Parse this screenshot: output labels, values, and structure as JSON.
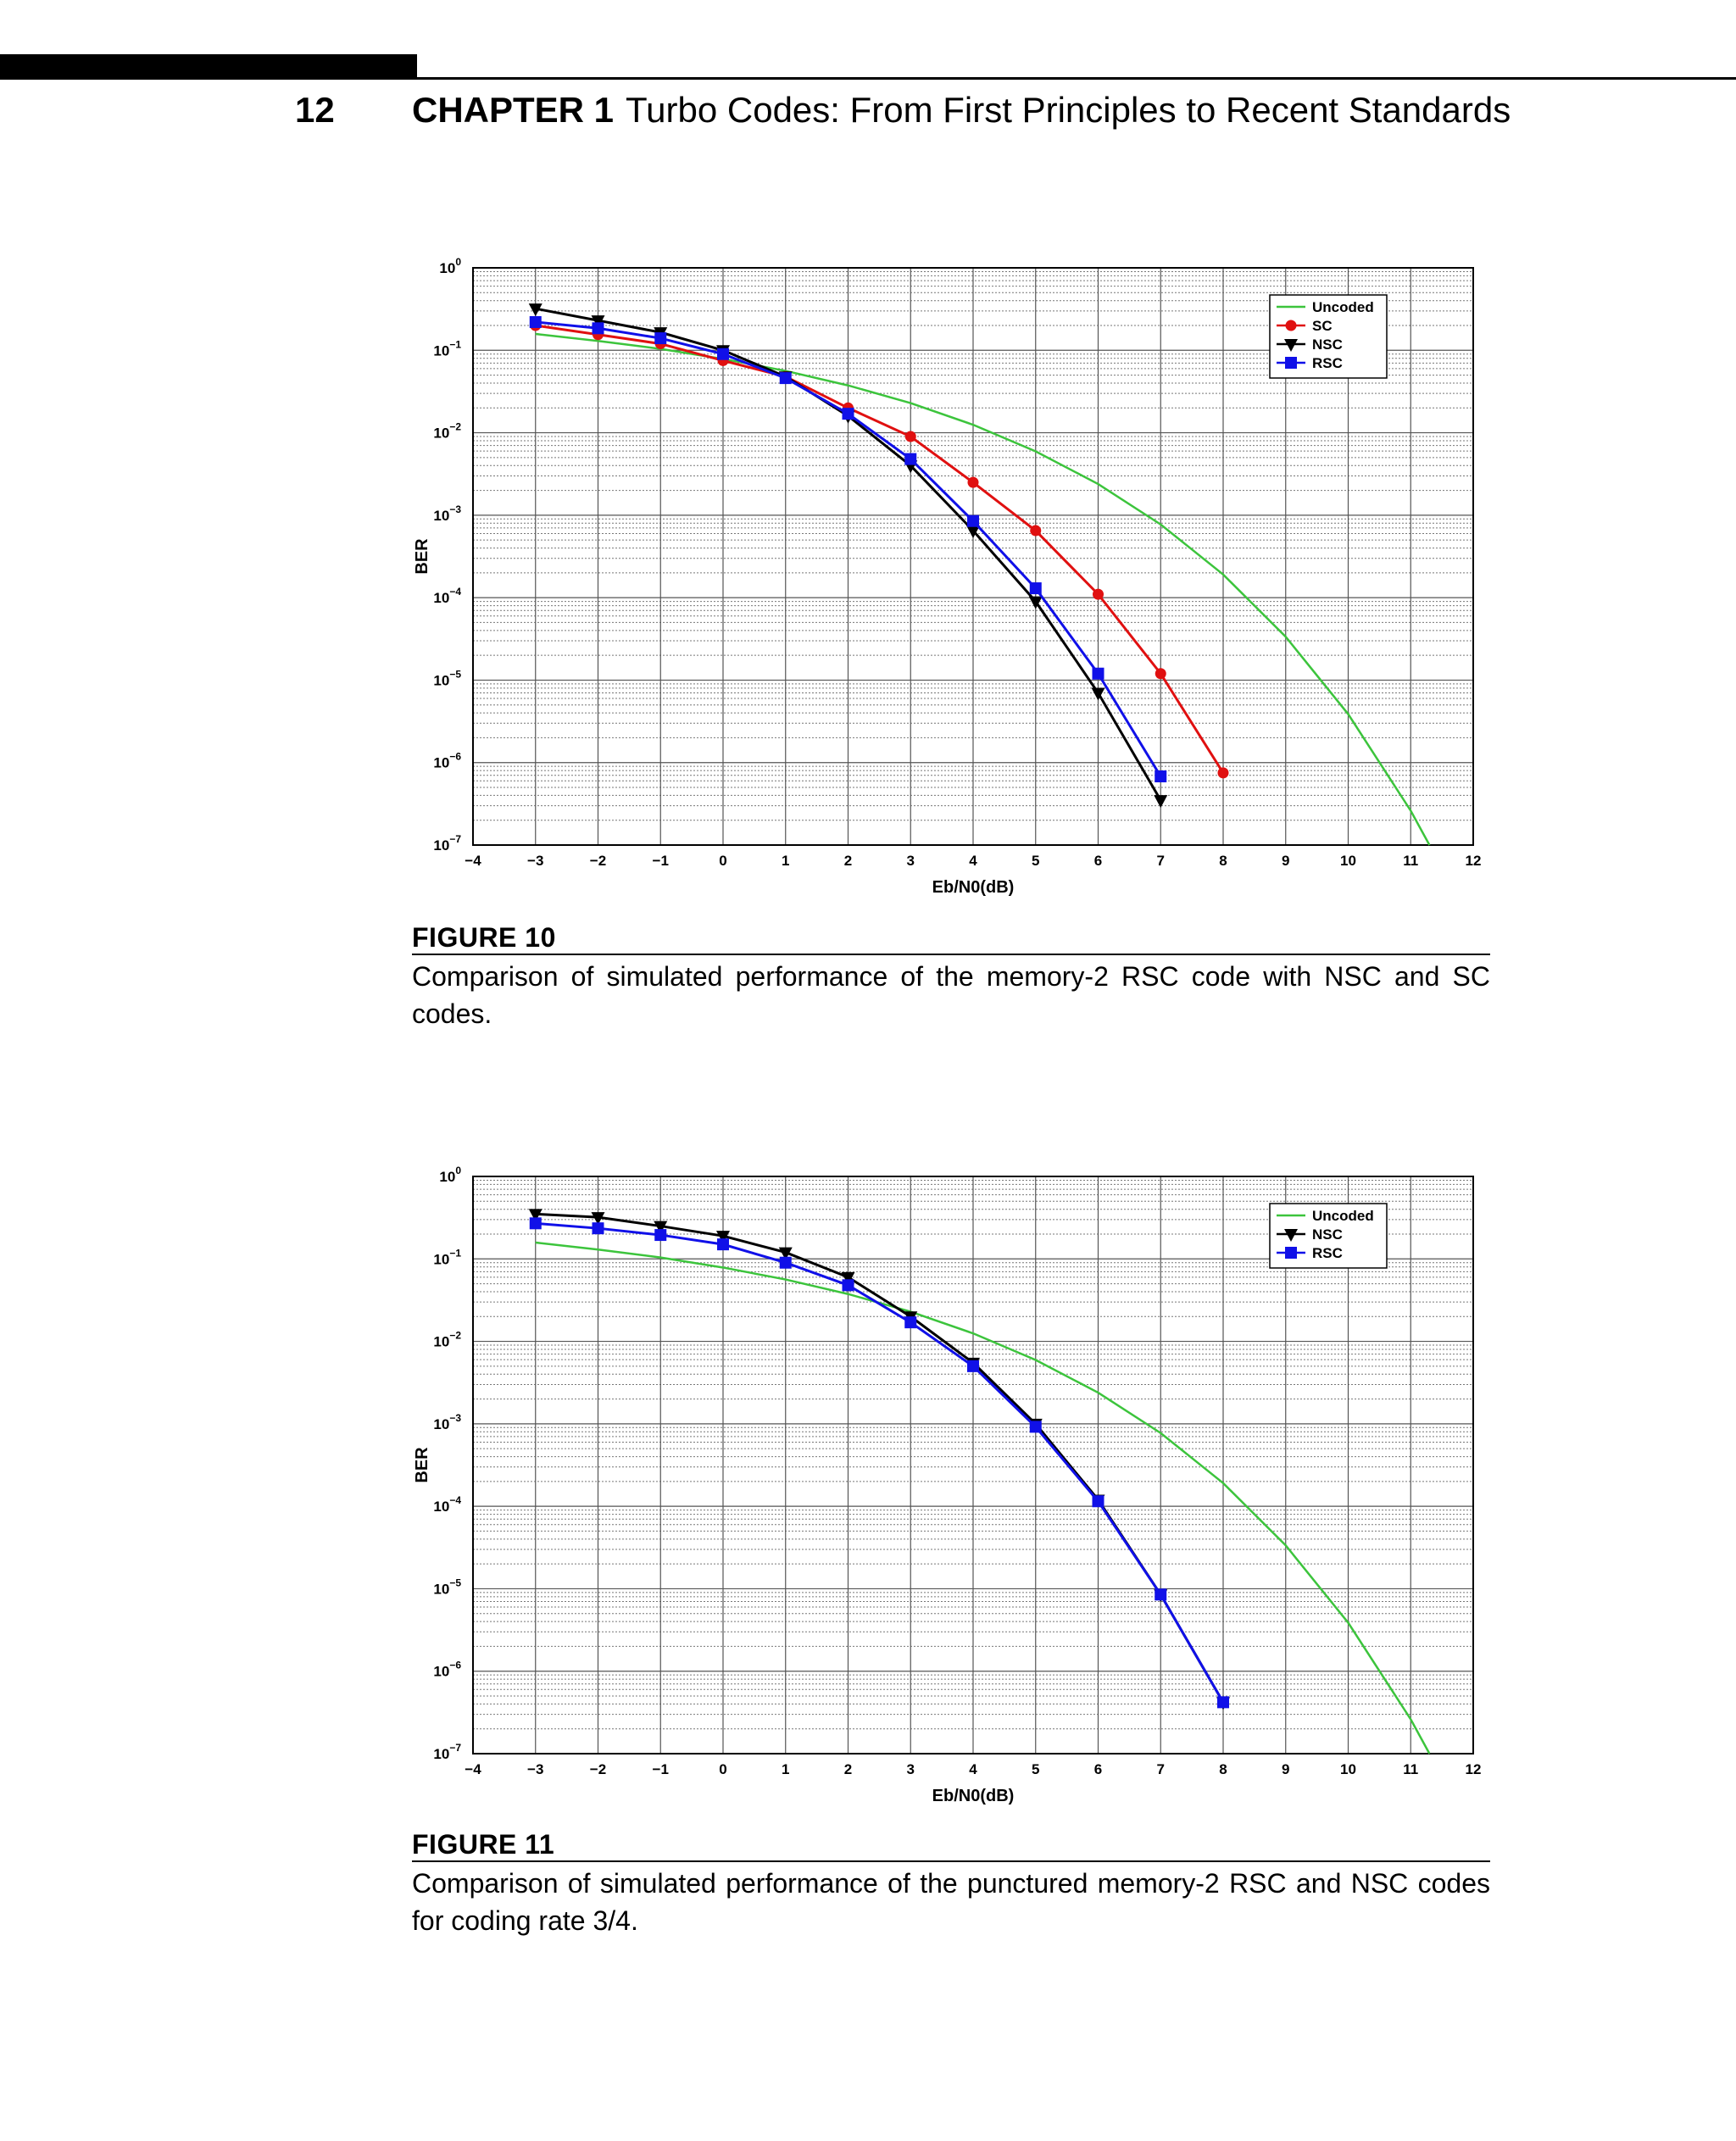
{
  "header": {
    "page_number": "12",
    "chapter_label": "CHAPTER 1",
    "chapter_title": "Turbo Codes: From First Principles to Recent Standards"
  },
  "figures": [
    {
      "label": "FIGURE 10",
      "caption": "Comparison of simulated performance of the memory-2 RSC code with NSC and SC codes."
    },
    {
      "label": "FIGURE 11",
      "caption": "Comparison of simulated performance of the punctured memory-2 RSC and NSC codes for coding rate 3/4."
    }
  ],
  "colors": {
    "uncoded": "#3cc43c",
    "sc": "#e01010",
    "nsc": "#000000",
    "rsc": "#1010e8"
  },
  "chart_data": [
    {
      "type": "line",
      "title": "",
      "xlabel": "Eb/N0(dB)",
      "ylabel": "BER",
      "xlim": [
        -4,
        12
      ],
      "ylim": [
        1e-07,
        1
      ],
      "yscale": "log",
      "xticks": [
        "−4",
        "−3",
        "−2",
        "−1",
        "0",
        "1",
        "2",
        "3",
        "4",
        "5",
        "6",
        "7",
        "8",
        "9",
        "10",
        "11",
        "12"
      ],
      "yticks": [
        "10^0",
        "10^−1",
        "10^−2",
        "10^−3",
        "10^−4",
        "10^−5",
        "10^−6",
        "10^−7"
      ],
      "grid": true,
      "legend_position": "top-right",
      "series": [
        {
          "name": "Uncoded",
          "color": "#3cc43c",
          "marker": "none",
          "x": [
            -3,
            -2,
            -1,
            0,
            1,
            2,
            3,
            4,
            5,
            6,
            7,
            8,
            9,
            10,
            11,
            11.3
          ],
          "y": [
            0.158,
            0.13,
            0.104,
            0.0786,
            0.0563,
            0.0375,
            0.0229,
            0.0125,
            0.00595,
            0.00239,
            0.000773,
            0.000191,
            3.36e-05,
            3.87e-06,
            2.61e-07,
            1e-07
          ]
        },
        {
          "name": "SC",
          "color": "#e01010",
          "marker": "circle",
          "x": [
            -3,
            -2,
            -1,
            0,
            1,
            2,
            3,
            4,
            5,
            6,
            7,
            8
          ],
          "y": [
            0.2,
            0.155,
            0.12,
            0.075,
            0.048,
            0.02,
            0.009,
            0.0025,
            0.00065,
            0.00011,
            1.2e-05,
            7.5e-07
          ]
        },
        {
          "name": "NSC",
          "color": "#000000",
          "marker": "triangle-down",
          "x": [
            -3,
            -2,
            -1,
            0,
            1,
            2,
            3,
            4,
            5,
            6,
            7
          ],
          "y": [
            0.32,
            0.23,
            0.165,
            0.1,
            0.048,
            0.016,
            0.004,
            0.00065,
            9e-05,
            7e-06,
            3.5e-07
          ]
        },
        {
          "name": "RSC",
          "color": "#1010e8",
          "marker": "square",
          "x": [
            -3,
            -2,
            -1,
            0,
            1,
            2,
            3,
            4,
            5,
            6,
            7
          ],
          "y": [
            0.22,
            0.185,
            0.14,
            0.09,
            0.046,
            0.017,
            0.0048,
            0.00085,
            0.00013,
            1.2e-05,
            6.8e-07
          ]
        }
      ]
    },
    {
      "type": "line",
      "title": "",
      "xlabel": "Eb/N0(dB)",
      "ylabel": "BER",
      "xlim": [
        -4,
        12
      ],
      "ylim": [
        1e-07,
        1
      ],
      "yscale": "log",
      "xticks": [
        "−4",
        "−3",
        "−2",
        "−1",
        "0",
        "1",
        "2",
        "3",
        "4",
        "5",
        "6",
        "7",
        "8",
        "9",
        "10",
        "11",
        "12"
      ],
      "yticks": [
        "10^0",
        "10^−1",
        "10^−2",
        "10^−3",
        "10^−4",
        "10^−5",
        "10^−6",
        "10^−7"
      ],
      "grid": true,
      "legend_position": "top-right",
      "series": [
        {
          "name": "Uncoded",
          "color": "#3cc43c",
          "marker": "none",
          "x": [
            -3,
            -2,
            -1,
            0,
            1,
            2,
            3,
            4,
            5,
            6,
            7,
            8,
            9,
            10,
            11,
            11.3
          ],
          "y": [
            0.158,
            0.13,
            0.104,
            0.0786,
            0.0563,
            0.0375,
            0.0229,
            0.0125,
            0.00595,
            0.00239,
            0.000773,
            0.000191,
            3.36e-05,
            3.87e-06,
            2.61e-07,
            1e-07
          ]
        },
        {
          "name": "NSC",
          "color": "#000000",
          "marker": "triangle-down",
          "x": [
            -3,
            -2,
            -1,
            0,
            1,
            2,
            3,
            4,
            5,
            6,
            7,
            8
          ],
          "y": [
            0.35,
            0.32,
            0.25,
            0.19,
            0.12,
            0.06,
            0.02,
            0.0055,
            0.001,
            0.00012,
            8.5e-06,
            4.2e-07
          ]
        },
        {
          "name": "RSC",
          "color": "#1010e8",
          "marker": "square",
          "x": [
            -3,
            -2,
            -1,
            0,
            1,
            2,
            3,
            4,
            5,
            6,
            7,
            8
          ],
          "y": [
            0.27,
            0.235,
            0.195,
            0.15,
            0.09,
            0.048,
            0.017,
            0.005,
            0.00092,
            0.000115,
            8.5e-06,
            4.2e-07
          ]
        }
      ]
    }
  ]
}
